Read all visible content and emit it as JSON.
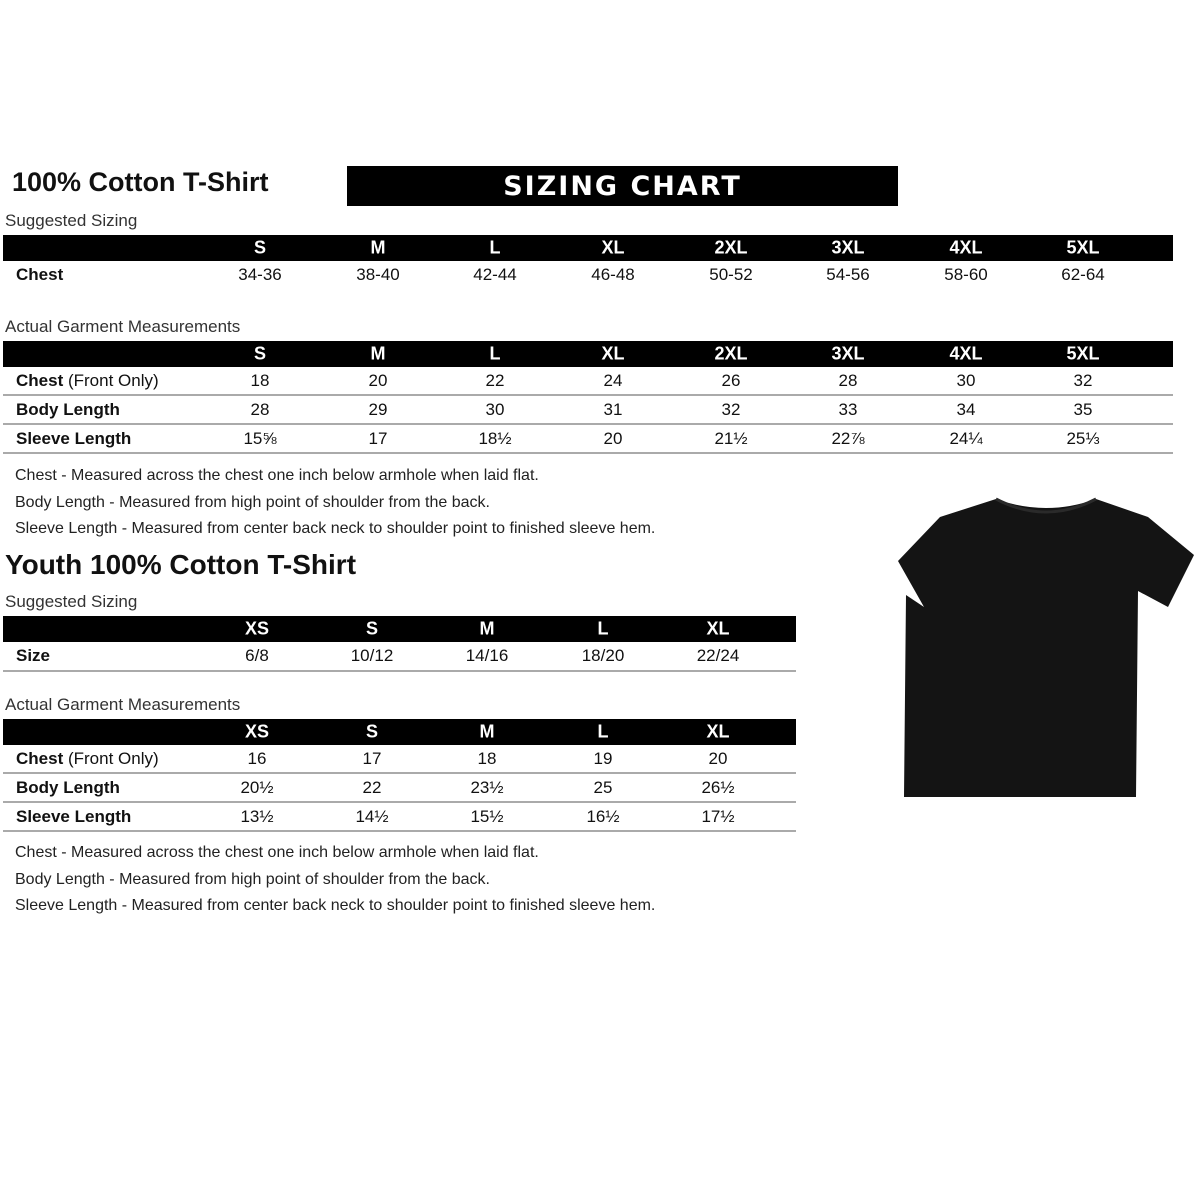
{
  "adult": {
    "title": "100% Cotton T-Shirt",
    "banner": "SIZING CHART",
    "suggested_label": "Suggested Sizing",
    "sizes": [
      "S",
      "M",
      "L",
      "XL",
      "2XL",
      "3XL",
      "4XL",
      "5XL"
    ],
    "suggested_rows": [
      {
        "label": "Chest",
        "values": [
          "34-36",
          "38-40",
          "42-44",
          "46-48",
          "50-52",
          "54-56",
          "58-60",
          "62-64"
        ]
      }
    ],
    "actual_label": "Actual Garment Measurements",
    "actual_rows": [
      {
        "label": "Chest",
        "label_note": "(Front Only)",
        "values": [
          "18",
          "20",
          "22",
          "24",
          "26",
          "28",
          "30",
          "32"
        ]
      },
      {
        "label": "Body Length",
        "values": [
          "28",
          "29",
          "30",
          "31",
          "32",
          "33",
          "34",
          "35"
        ]
      },
      {
        "label": "Sleeve Length",
        "values": [
          "15⅝",
          "17",
          "18½",
          "20",
          "21½",
          "22⅞",
          "24¼",
          "25⅓"
        ]
      }
    ],
    "notes": [
      "Chest - Measured across the chest one inch below armhole when laid flat.",
      "Body Length - Measured from high point of shoulder from the back.",
      "Sleeve Length - Measured from center back neck to shoulder point to finished sleeve hem."
    ]
  },
  "youth": {
    "title": "Youth 100% Cotton T-Shirt",
    "suggested_label": "Suggested Sizing",
    "sizes": [
      "XS",
      "S",
      "M",
      "L",
      "XL"
    ],
    "suggested_rows": [
      {
        "label": "Size",
        "values": [
          "6/8",
          "10/12",
          "14/16",
          "18/20",
          "22/24"
        ]
      }
    ],
    "actual_label": "Actual Garment Measurements",
    "actual_rows": [
      {
        "label": "Chest",
        "label_note": "(Front Only)",
        "values": [
          "16",
          "17",
          "18",
          "19",
          "20"
        ]
      },
      {
        "label": "Body Length",
        "values": [
          "20½",
          "22",
          "23½",
          "25",
          "26½"
        ]
      },
      {
        "label": "Sleeve Length",
        "values": [
          "13½",
          "14½",
          "15½",
          "16½",
          "17½"
        ]
      }
    ],
    "notes": [
      "Chest - Measured across the chest one inch below armhole when laid flat.",
      "Body Length - Measured from high point of shoulder from the back.",
      "Sleeve Length - Measured from center back neck to shoulder point to finished sleeve hem."
    ]
  },
  "tshirt_color": "#141414"
}
